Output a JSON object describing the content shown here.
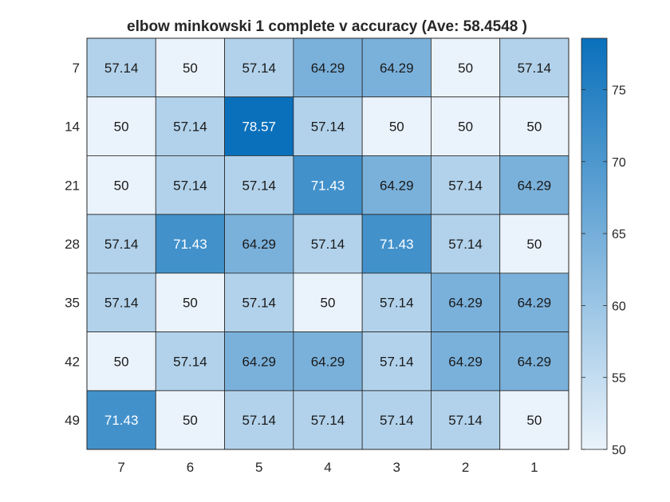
{
  "chart_data": {
    "type": "heatmap",
    "title": "elbow minkowski 1 complete v accuracy (Ave:  58.4548 )",
    "x_categories": [
      "7",
      "6",
      "5",
      "4",
      "3",
      "2",
      "1"
    ],
    "y_categories": [
      "7",
      "14",
      "21",
      "28",
      "35",
      "42",
      "49"
    ],
    "values": [
      [
        57.14,
        50,
        57.14,
        64.29,
        64.29,
        50,
        57.14
      ],
      [
        50,
        57.14,
        78.57,
        57.14,
        50,
        50,
        50
      ],
      [
        50,
        57.14,
        57.14,
        71.43,
        64.29,
        57.14,
        64.29
      ],
      [
        57.14,
        71.43,
        64.29,
        57.14,
        71.43,
        57.14,
        50
      ],
      [
        57.14,
        50,
        57.14,
        50,
        57.14,
        64.29,
        64.29
      ],
      [
        50,
        57.14,
        64.29,
        64.29,
        57.14,
        64.29,
        64.29
      ],
      [
        71.43,
        50,
        57.14,
        57.14,
        57.14,
        57.14,
        50
      ]
    ],
    "colorbar": {
      "range": [
        50,
        78.57
      ],
      "ticks": [
        50,
        55,
        60,
        65,
        70,
        75
      ],
      "color_low": "#eaf3fb",
      "color_high": "#0a70bb"
    },
    "xlabel": "",
    "ylabel": ""
  }
}
